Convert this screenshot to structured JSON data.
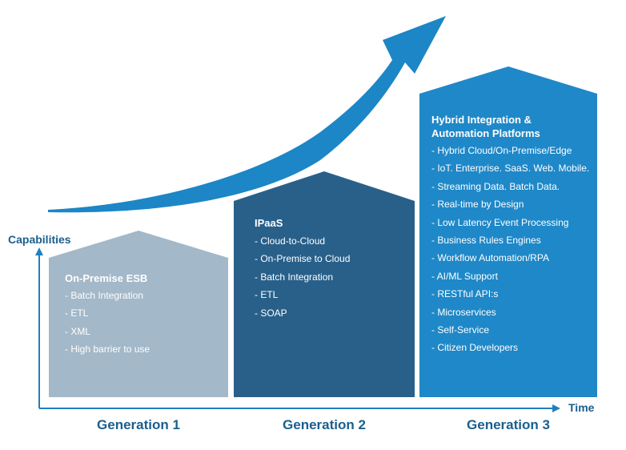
{
  "axis": {
    "y_label": "Capabilities",
    "x_label": "Time"
  },
  "generations": [
    {
      "label": "Generation 1",
      "title": "On-Premise ESB",
      "color": "#a3b8c8",
      "items": [
        "- Batch Integration",
        "- ETL",
        "- XML",
        "- High barrier to use"
      ]
    },
    {
      "label": "Generation 2",
      "title": "IPaaS",
      "color": "#28608a",
      "items": [
        "- Cloud-to-Cloud",
        "- On-Premise to Cloud",
        "- Batch Integration",
        "- ETL",
        "- SOAP"
      ]
    },
    {
      "label": "Generation 3",
      "title_lines": [
        "Hybrid Integration &",
        "Automation Platforms"
      ],
      "color": "#1f88c8",
      "items": [
        "- Hybrid Cloud/On-Premise/Edge",
        "- IoT. Enterprise. SaaS. Web. Mobile.",
        "- Streaming Data. Batch Data.",
        "- Real-time by Design",
        "- Low Latency Event Processing",
        "- Business Rules Engines",
        "- Workflow Automation/RPA",
        "- AI/ML Support",
        "- RESTful API:s",
        "- Microservices",
        "- Self-Service",
        "- Citizen Developers"
      ]
    }
  ],
  "colors": {
    "growth_arrow": "#1c86c6",
    "axis": "#1f7fc0",
    "text_dark": "#1a5f8e"
  }
}
